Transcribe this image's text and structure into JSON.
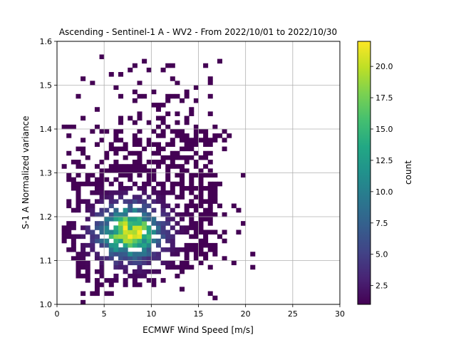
{
  "chart_data": {
    "type": "heatmap",
    "title": "Ascending - Sentinel-1 A - WV2 - From 2022/10/01 to 2022/10/30",
    "xlabel": "ECMWF Wind Speed [m/s]",
    "ylabel": "S-1 A Normalized variance",
    "xlim": [
      0,
      30
    ],
    "ylim": [
      1.0,
      1.6
    ],
    "grid": true,
    "xticks": [
      0,
      5,
      10,
      15,
      20,
      25,
      30
    ],
    "xtick_labels": [
      "0",
      "5",
      "10",
      "15",
      "20",
      "25",
      "30"
    ],
    "yticks": [
      1.0,
      1.1,
      1.2,
      1.3,
      1.4,
      1.5,
      1.6
    ],
    "ytick_labels": [
      "1.0",
      "1.1",
      "1.2",
      "1.3",
      "1.4",
      "1.5",
      "1.6"
    ],
    "bin_width_x": 0.5,
    "bin_width_y": 0.01,
    "density_peak": {
      "x": 7.5,
      "y": 1.16
    },
    "count_range": [
      1,
      22
    ],
    "colormap": "viridis",
    "colorbar": {
      "label": "count",
      "ticks": [
        2.5,
        5.0,
        7.5,
        10.0,
        12.5,
        15.0,
        17.5,
        20.0
      ],
      "tick_labels": [
        "2.5",
        "5.0",
        "7.5",
        "10.0",
        "12.5",
        "15.0",
        "17.5",
        "20.0"
      ]
    },
    "grid_color": "#b0b0b0"
  }
}
